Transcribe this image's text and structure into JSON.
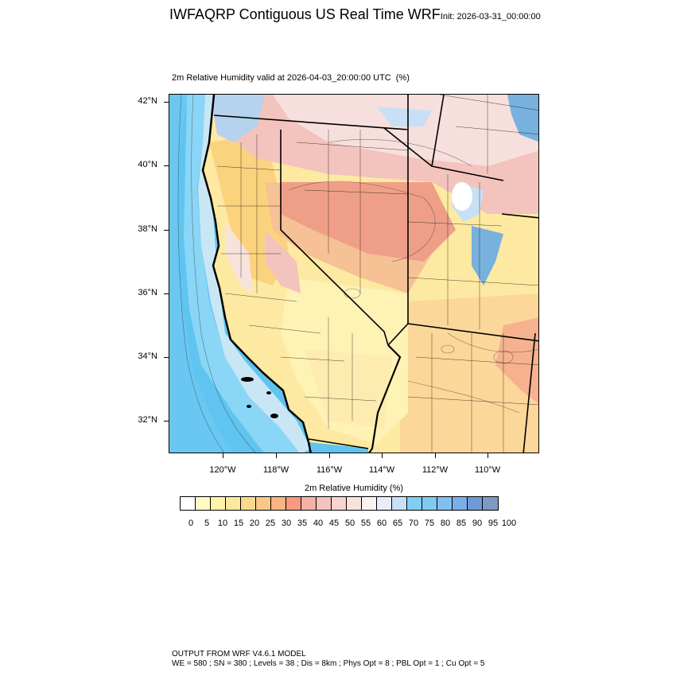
{
  "header": {
    "title": "IWFAQRP Contiguous US Real Time WRF",
    "init_label": "Init: 2026-03-31_00:00:00",
    "plot_title": "2m Relative Humidity valid at 2026-04-03_20:00:00 UTC",
    "plot_unit": "(%)"
  },
  "map": {
    "lat_labels": [
      "42°N",
      "40°N",
      "38°N",
      "36°N",
      "34°N",
      "32°N"
    ],
    "lon_labels": [
      "120°W",
      "118°W",
      "116°W",
      "114°W",
      "112°W",
      "110°W"
    ],
    "colors": {
      "ocean": "#5fc4f0",
      "ocean_light": "#8ad6f6",
      "coast_moist": "#c9e6f5",
      "very_dry": "#fde9a2",
      "dry": "#fcd79a",
      "moderate": "#f6c194",
      "salmon": "#ef9f88",
      "pink": "#f3c3bd",
      "high_terrain": "#f7dfdd",
      "wet_mountains": "#78b1dd"
    }
  },
  "colorbar": {
    "title": "2m Relative Humidity  (%)",
    "labels": [
      "0",
      "5",
      "10",
      "15",
      "20",
      "25",
      "30",
      "35",
      "40",
      "45",
      "50",
      "55",
      "60",
      "65",
      "70",
      "75",
      "80",
      "85",
      "90",
      "95",
      "100"
    ],
    "colors": [
      "#ffffff",
      "#fefcc2",
      "#fdf3a9",
      "#fce79c",
      "#fbd98c",
      "#fbc887",
      "#f9b47f",
      "#f79a80",
      "#f2b2a8",
      "#f3c3be",
      "#f6d4cf",
      "#f8e3dc",
      "#faf1f0",
      "#e9edf9",
      "#c8e0f5",
      "#7fcff4",
      "#7fcaf3",
      "#82bff0",
      "#7aaee9",
      "#6f9ad7",
      "#7b9bc6"
    ]
  },
  "footer": {
    "line1": "OUTPUT FROM WRF V4.6.1 MODEL",
    "line2": "WE = 580 ; SN = 380 ; Levels = 38 ; Dis = 8km ; Phys Opt = 8 ; PBL Opt = 1 ; Cu Opt = 5"
  }
}
